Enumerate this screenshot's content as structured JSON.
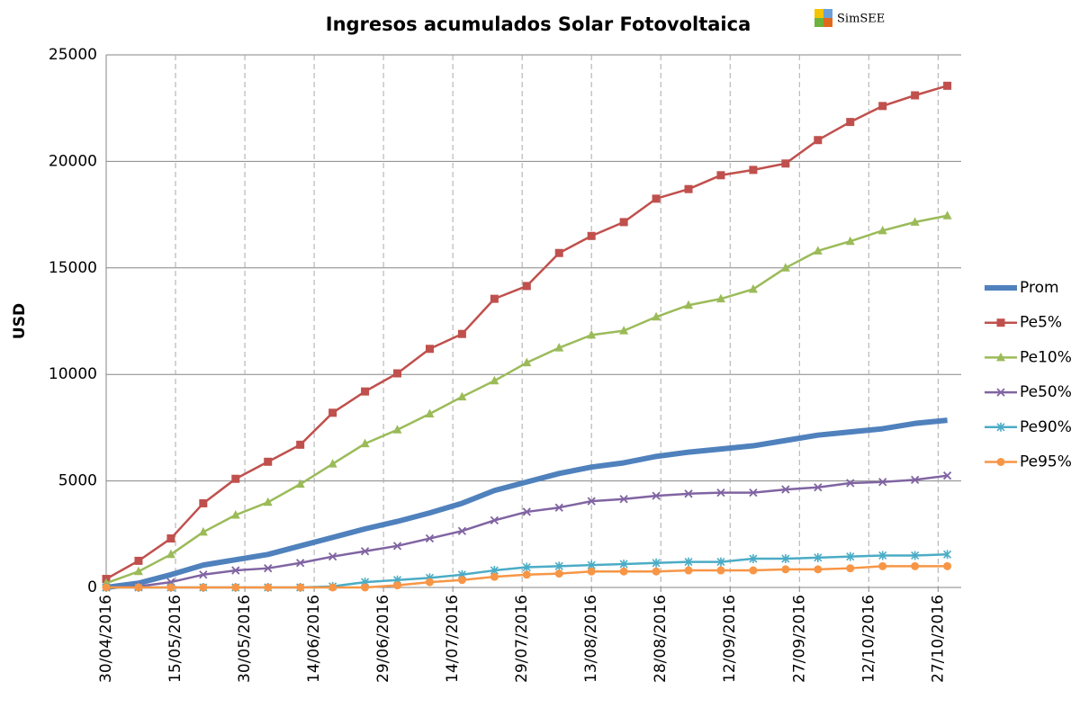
{
  "chart_data": {
    "type": "line",
    "title": "Ingresos acumulados Solar Fotovoltaica",
    "logo_text": "SimSEE",
    "y_label": "USD",
    "x": [
      "30/04/2016",
      "07/05/2016",
      "14/05/2016",
      "21/05/2016",
      "28/05/2016",
      "04/06/2016",
      "11/06/2016",
      "18/06/2016",
      "25/06/2016",
      "02/07/2016",
      "09/07/2016",
      "16/07/2016",
      "23/07/2016",
      "30/07/2016",
      "06/08/2016",
      "13/08/2016",
      "20/08/2016",
      "27/08/2016",
      "03/09/2016",
      "10/09/2016",
      "17/09/2016",
      "24/09/2016",
      "01/10/2016",
      "08/10/2016",
      "15/10/2016",
      "22/10/2016",
      "29/10/2016"
    ],
    "xlim": [
      "30/04/2016",
      "01/11/2016"
    ],
    "xticks": [
      "30/04/2016",
      "15/05/2016",
      "30/05/2016",
      "14/06/2016",
      "29/06/2016",
      "14/07/2016",
      "29/07/2016",
      "13/08/2016",
      "28/08/2016",
      "12/09/2016",
      "27/09/2016",
      "12/10/2016",
      "27/10/2016"
    ],
    "ylim": [
      0,
      25000
    ],
    "yticks": [
      0,
      5000,
      10000,
      15000,
      20000,
      25000
    ],
    "grid": true,
    "legend": "right",
    "series": [
      {
        "name": "Prom",
        "color": "#4f81bd",
        "marker": "none",
        "values": [
          0,
          200,
          600,
          1050,
          1300,
          1550,
          1950,
          2350,
          2750,
          3100,
          3500,
          3950,
          4550,
          4950,
          5350,
          5650,
          5850,
          6150,
          6350,
          6500,
          6650,
          6900,
          7150,
          7300,
          7450,
          7700,
          7850
        ]
      },
      {
        "name": "Pe5%",
        "color": "#c0504d",
        "marker": "square",
        "values": [
          400,
          1250,
          2300,
          3950,
          5100,
          5900,
          6700,
          8200,
          9200,
          10050,
          11200,
          11900,
          13550,
          14150,
          15700,
          16500,
          17150,
          18250,
          18700,
          19350,
          19600,
          19900,
          21000,
          21850,
          22600,
          23100,
          23550
        ]
      },
      {
        "name": "Pe10%",
        "color": "#9bbb59",
        "marker": "triangle",
        "values": [
          200,
          750,
          1550,
          2600,
          3400,
          4000,
          4850,
          5800,
          6750,
          7400,
          8150,
          8950,
          9700,
          10550,
          11250,
          11850,
          12050,
          12700,
          13250,
          13550,
          14000,
          15000,
          15800,
          16250,
          16750,
          17150,
          17450
        ]
      },
      {
        "name": "Pe50%",
        "color": "#8064a2",
        "marker": "x",
        "values": [
          0,
          50,
          250,
          600,
          800,
          900,
          1150,
          1450,
          1700,
          1950,
          2300,
          2650,
          3150,
          3550,
          3750,
          4050,
          4150,
          4300,
          4400,
          4450,
          4450,
          4600,
          4700,
          4900,
          4950,
          5050,
          5250
        ]
      },
      {
        "name": "Pe90%",
        "color": "#4bacc6",
        "marker": "star",
        "values": [
          0,
          0,
          0,
          0,
          0,
          0,
          0,
          50,
          250,
          350,
          450,
          600,
          800,
          950,
          1000,
          1050,
          1100,
          1150,
          1200,
          1200,
          1350,
          1350,
          1400,
          1450,
          1500,
          1500,
          1550
        ]
      },
      {
        "name": "Pe95%",
        "color": "#f79646",
        "marker": "circle",
        "values": [
          0,
          0,
          0,
          0,
          0,
          0,
          0,
          0,
          0,
          100,
          250,
          350,
          500,
          600,
          650,
          750,
          750,
          750,
          800,
          800,
          800,
          850,
          850,
          900,
          1000,
          1000,
          1000
        ]
      }
    ]
  }
}
